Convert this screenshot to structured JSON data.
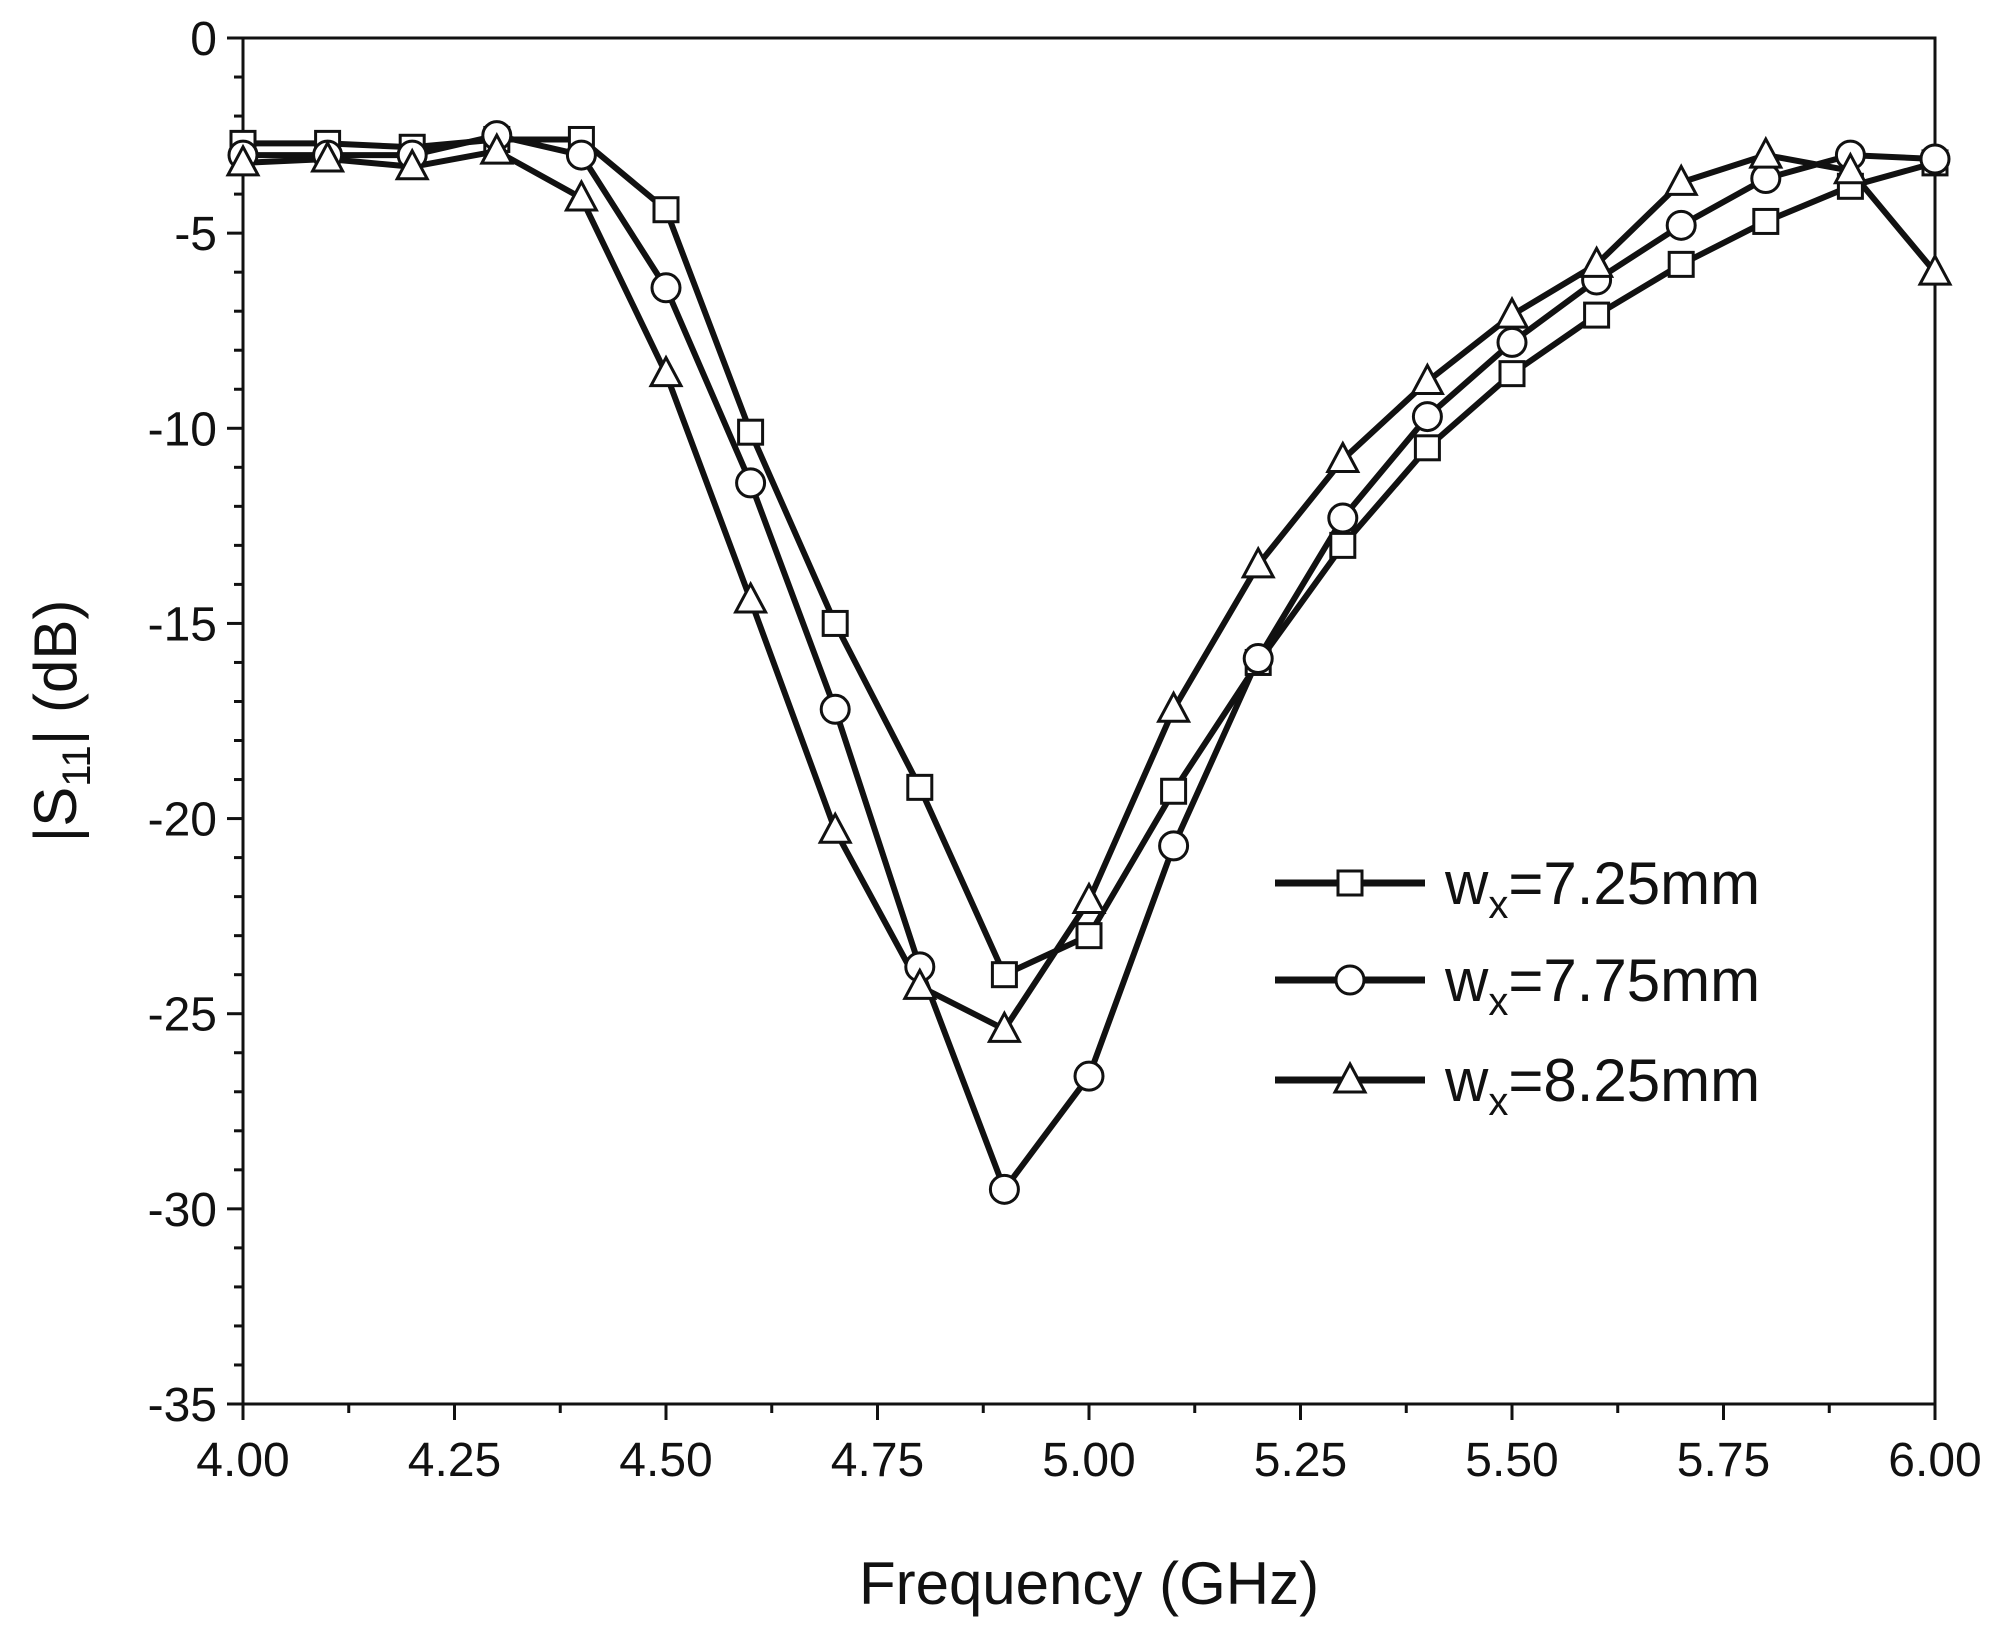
{
  "chart_data": {
    "type": "line",
    "title": "",
    "xlabel": "Frequency (GHz)",
    "ylabel": {
      "prefix": "|S",
      "subscript": "11",
      "suffix": "| (dB)"
    },
    "xlim": [
      4.0,
      6.0
    ],
    "ylim": [
      -35,
      0
    ],
    "x_ticks": [
      "4.00",
      "4.25",
      "4.50",
      "4.75",
      "5.00",
      "5.25",
      "5.50",
      "5.75",
      "6.00"
    ],
    "y_ticks": [
      "0",
      "-5",
      "-10",
      "-15",
      "-20",
      "-25",
      "-30",
      "-35"
    ],
    "grid": false,
    "legend_position": "right",
    "x": [
      4.0,
      4.1,
      4.2,
      4.3,
      4.4,
      4.5,
      4.6,
      4.7,
      4.8,
      4.9,
      5.0,
      5.1,
      5.2,
      5.3,
      5.4,
      5.5,
      5.6,
      5.7,
      5.8,
      5.9,
      6.0
    ],
    "series": [
      {
        "name": "wx=7.25mm",
        "legend": {
          "base": "w",
          "sub": "x",
          "rest": "=7.25mm"
        },
        "marker": "square",
        "values": [
          -2.7,
          -2.7,
          -2.8,
          -2.6,
          -2.6,
          -4.4,
          -10.1,
          -15.0,
          -19.2,
          -24.0,
          -23.0,
          -19.3,
          -16.0,
          -13.0,
          -10.5,
          -8.6,
          -7.1,
          -5.8,
          -4.7,
          -3.8,
          -3.2
        ]
      },
      {
        "name": "wx=7.75mm",
        "legend": {
          "base": "w",
          "sub": "x",
          "rest": "=7.75mm"
        },
        "marker": "circle",
        "values": [
          -3.0,
          -3.0,
          -3.0,
          -2.5,
          -3.0,
          -6.4,
          -11.4,
          -17.2,
          -23.8,
          -29.5,
          -26.6,
          -20.7,
          -15.9,
          -12.3,
          -9.7,
          -7.8,
          -6.2,
          -4.8,
          -3.6,
          -3.0,
          -3.1
        ]
      },
      {
        "name": "wx=8.25mm",
        "legend": {
          "base": "w",
          "sub": "x",
          "rest": "=8.25mm"
        },
        "marker": "triangle",
        "values": [
          -3.2,
          -3.1,
          -3.3,
          -2.9,
          -4.1,
          -8.6,
          -14.4,
          -20.3,
          -24.3,
          -25.4,
          -22.1,
          -17.2,
          -13.5,
          -10.8,
          -8.8,
          -7.1,
          -5.8,
          -3.7,
          -3.0,
          -3.4,
          -6.0
        ]
      }
    ]
  }
}
